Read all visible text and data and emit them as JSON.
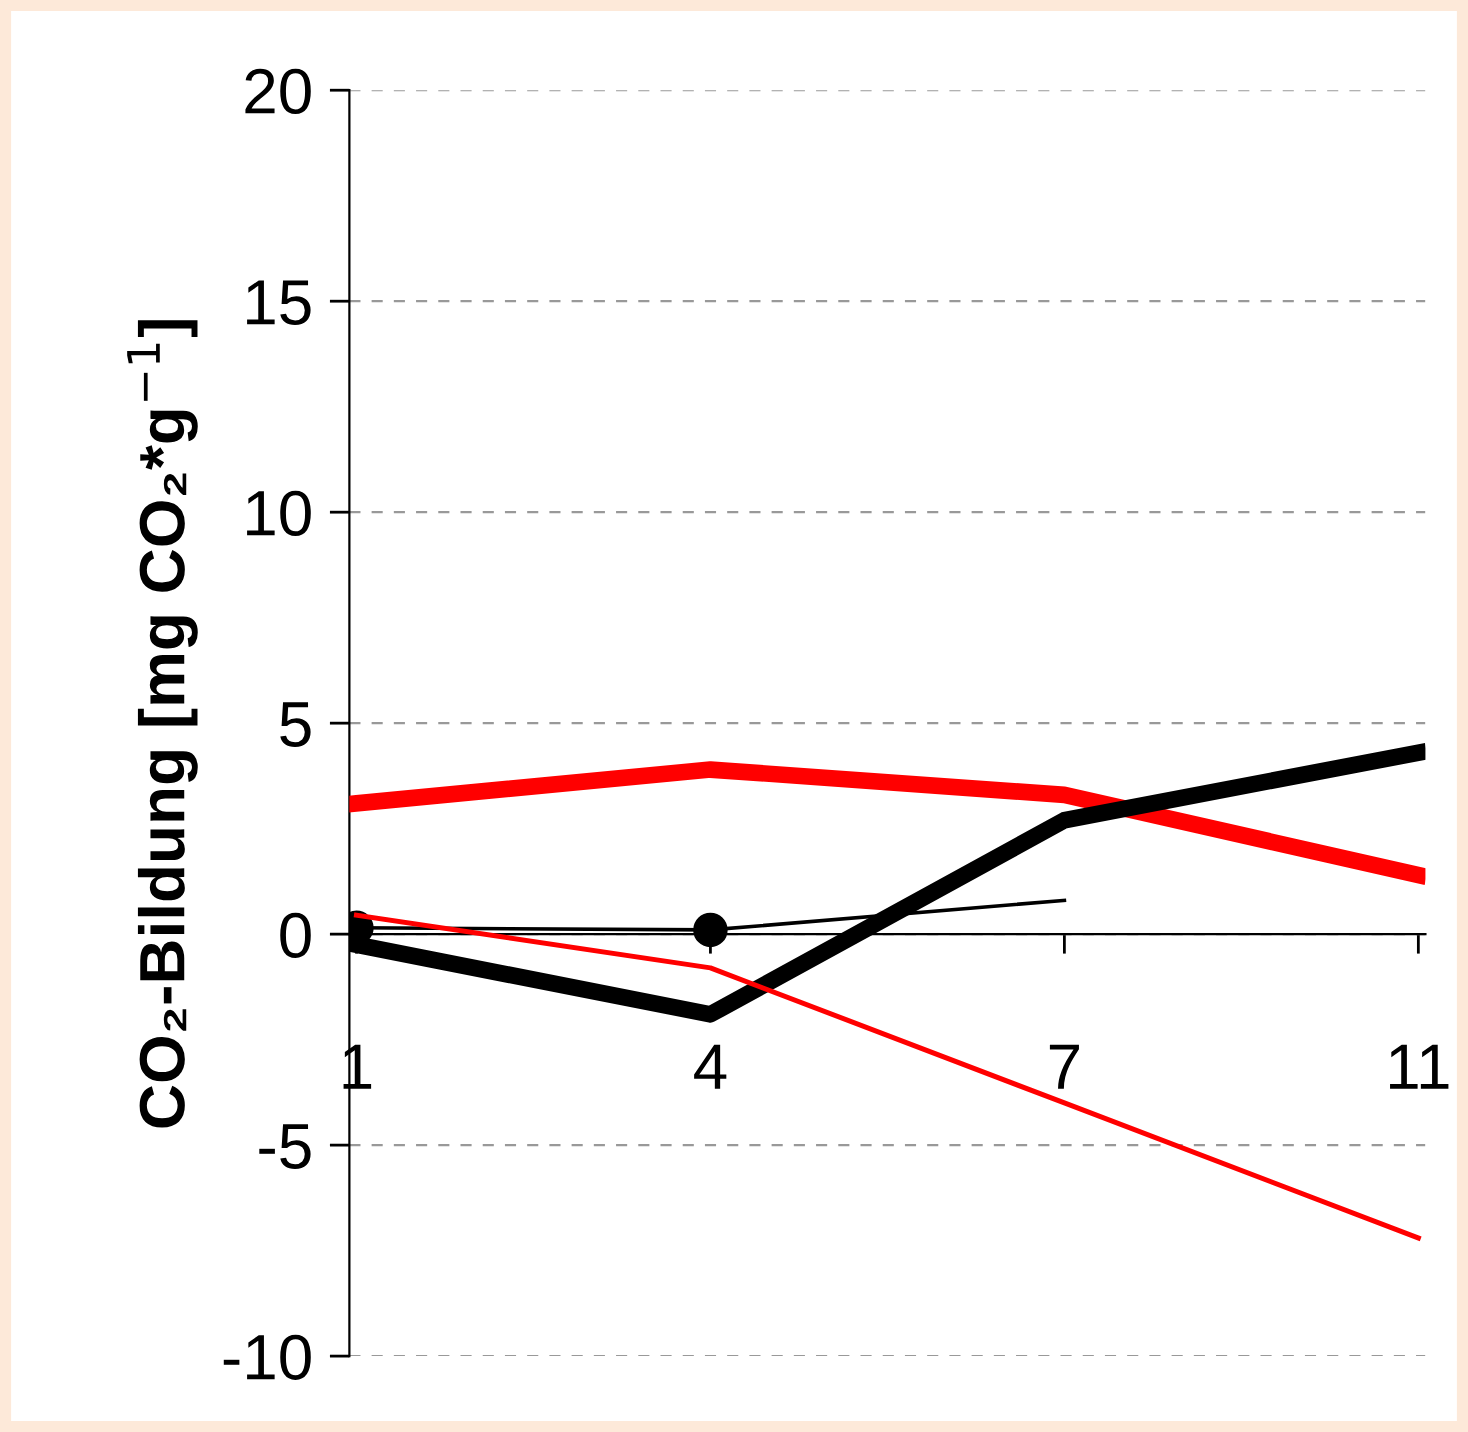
{
  "chart_data": {
    "type": "line",
    "ylabel": "CO₂-Bildung [mg CO₂*g$^{−1}$]",
    "categories": [
      "1",
      "4",
      "7",
      "11"
    ],
    "series": [
      {
        "color": "#ff0000",
        "values": [
          3.1,
          3.9,
          3.3,
          1.4
        ]
      },
      {
        "color": "#000000",
        "values": [
          -0.25,
          -1.9,
          2.7,
          4.3
        ]
      },
      {
        "color": "#ff0000",
        "values": [
          0.45,
          -0.8,
          -4.0,
          -7.2
        ]
      },
      {
        "color": "#000000",
        "values": [
          0.15,
          0.1,
          0.8,
          null
        ]
      },
      {
        "type": "scatter",
        "color": "#000000",
        "x": [
          "1",
          "4"
        ],
        "values": [
          0.15,
          0.1
        ],
        "marker": "circle"
      }
    ],
    "ylim": [
      -10,
      20
    ],
    "yticks": [
      -10,
      -5,
      0,
      5,
      10,
      15,
      20
    ],
    "grid": "y",
    "legend": false
  }
}
